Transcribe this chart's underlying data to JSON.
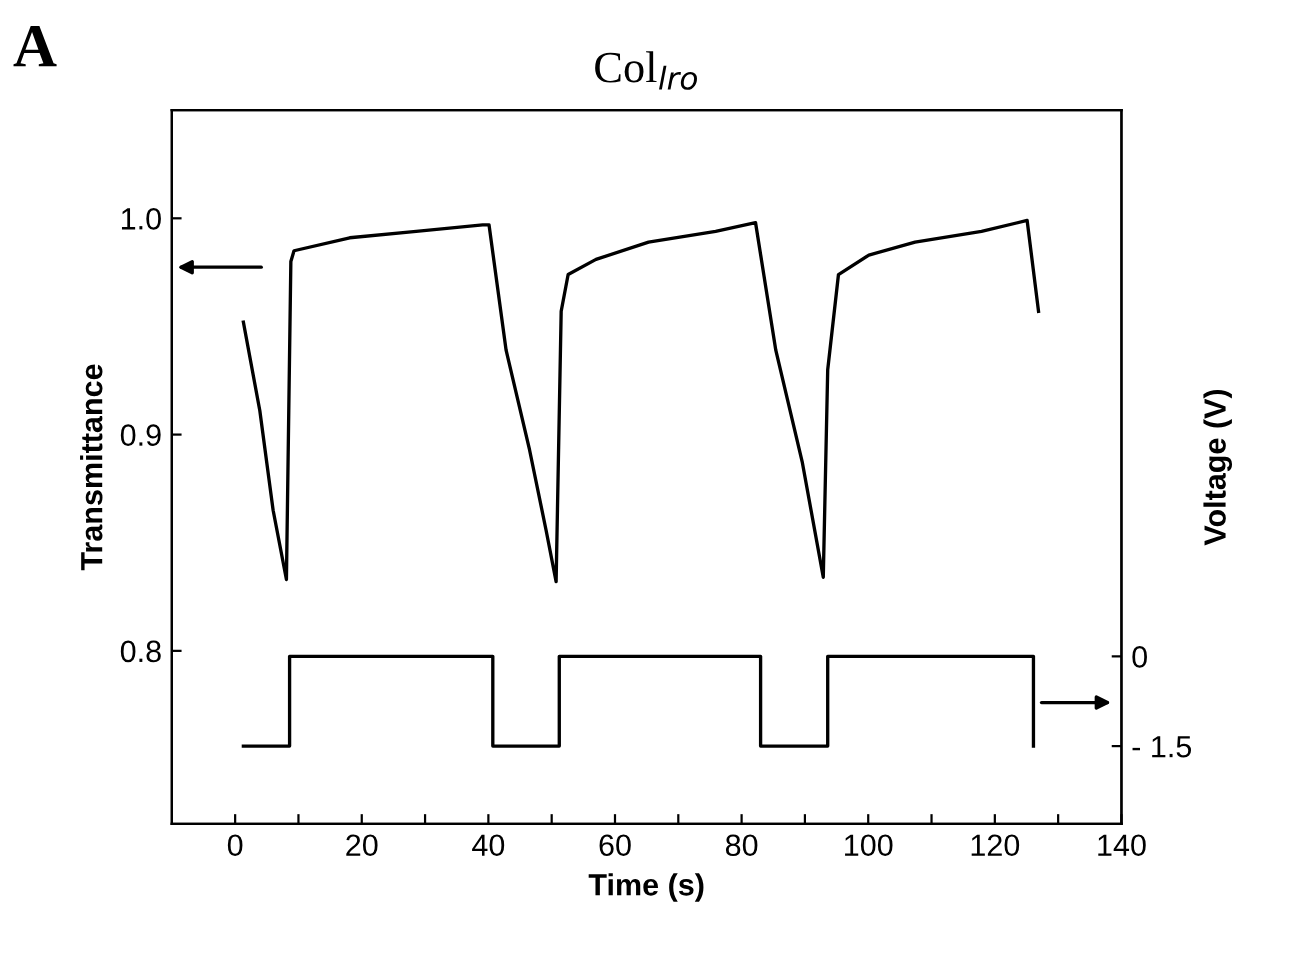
{
  "chart_data": {
    "type": "line",
    "title": "Col$_{lro}$",
    "xlabel": "Time (s)",
    "ylabel": "Transmittance",
    "y2label": "Voltage (V)",
    "annotations": [
      "A"
    ],
    "series": [
      {
        "color": "#000000",
        "x": [
          1.3,
          3.9,
          6.0,
          8.1,
          8.8,
          9.3,
          18.1,
          28.6,
          39.1,
          40.1,
          42.8,
          46.5,
          49.1,
          50.7,
          51.5,
          52.6,
          57,
          65.3,
          75.9,
          82.2,
          85.4,
          89.6,
          92.9,
          93.6,
          95.3,
          100.1,
          107.4,
          117.9,
          125.1,
          126.9
        ],
        "values": [
          0.952,
          0.911,
          0.865,
          0.833,
          0.98,
          0.985,
          0.991,
          0.994,
          0.997,
          0.997,
          0.939,
          0.893,
          0.856,
          0.832,
          0.957,
          0.974,
          0.981,
          0.989,
          0.994,
          0.998,
          0.939,
          0.887,
          0.834,
          0.93,
          0.974,
          0.983,
          0.989,
          0.994,
          0.999,
          0.957
        ]
      },
      {
        "color": "#000000",
        "axis": "y2",
        "x": [
          1.3,
          8.6,
          8.6,
          40.7,
          40.7,
          51.2,
          51.2,
          83.0,
          83.0,
          93.6,
          93.6,
          126.1,
          126.1
        ],
        "values": [
          -1.5,
          -1.5,
          0,
          0,
          -1.5,
          -1.5,
          0,
          0,
          -1.5,
          -1.5,
          0,
          0,
          -1.5
        ]
      }
    ],
    "xlim": [
      -10,
      140
    ],
    "xticks": [
      0,
      {
        "value": 10,
        "label": null
      },
      20,
      {
        "value": 30,
        "label": null
      },
      40,
      {
        "value": 50,
        "label": null
      },
      60,
      {
        "value": 70,
        "label": null
      },
      80,
      {
        "value": 90,
        "label": null
      },
      100,
      {
        "value": 110,
        "label": null
      },
      120,
      {
        "value": 130,
        "label": null
      },
      140
    ],
    "ylim": [
      0.72,
      1.05
    ],
    "yticks": [
      0.8,
      0.9,
      {
        "value": 1.0,
        "label": "1.0"
      }
    ],
    "y2lim": [
      -2.8,
      9.13
    ],
    "y2ticks": [
      {
        "value": -1.5,
        "label": "- 1.5"
      },
      0
    ],
    "grid": false,
    "legend": false,
    "line_style": "solid"
  }
}
